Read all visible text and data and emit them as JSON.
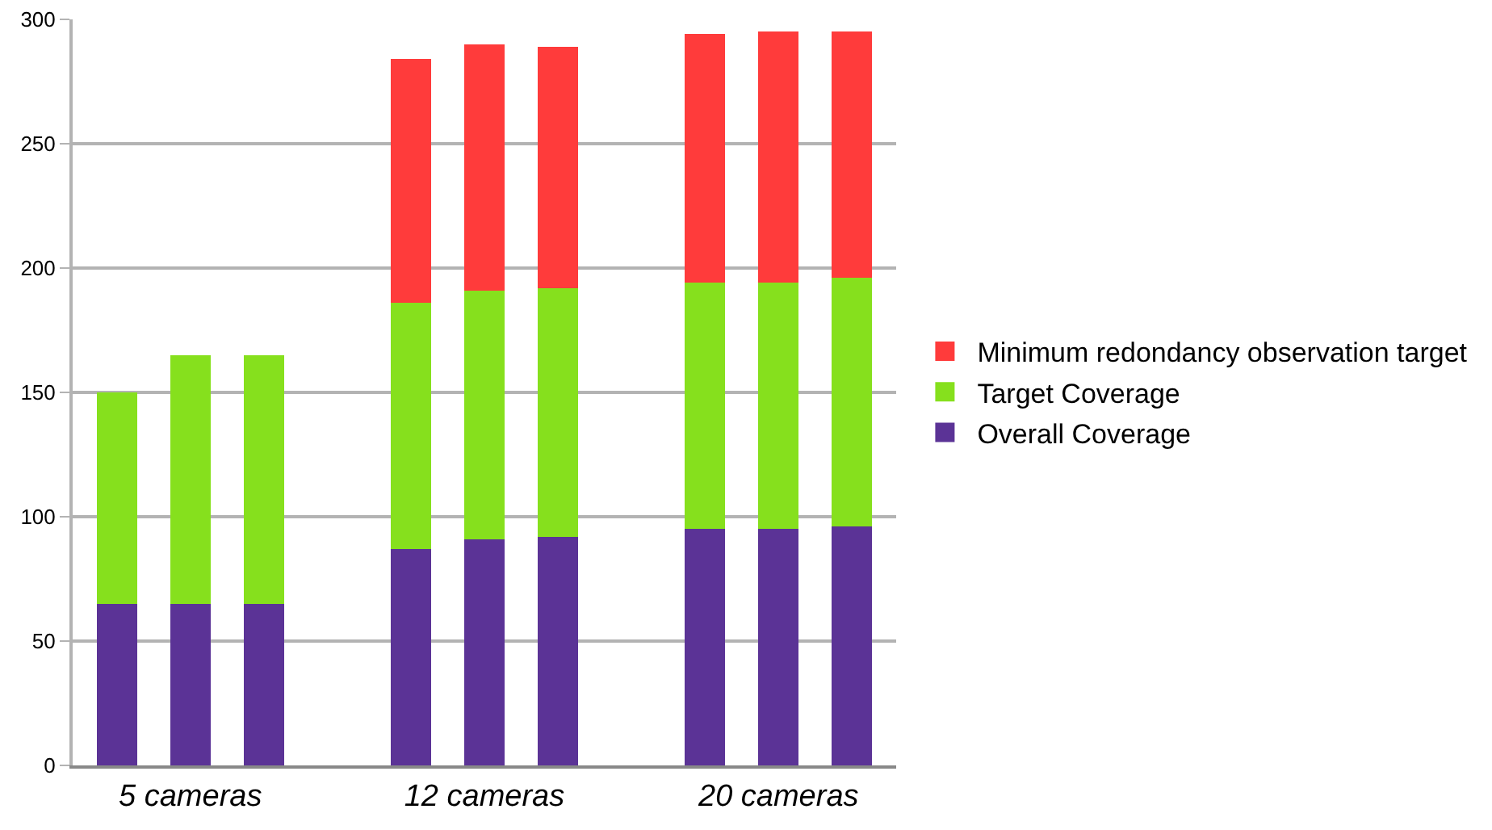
{
  "chart_data": {
    "type": "bar",
    "stacked": true,
    "categories": [
      null,
      "5 cameras",
      null,
      null,
      null,
      "12 cameras",
      null,
      null,
      null,
      "20 cameras",
      null
    ],
    "series": [
      {
        "name": "Overall Coverage",
        "color": "#5b3396",
        "values": [
          65,
          65,
          65,
          null,
          87,
          91,
          92,
          null,
          95,
          95,
          96
        ]
      },
      {
        "name": "Target Coverage",
        "color": "#86e01d",
        "values": [
          85,
          100,
          100,
          null,
          99,
          100,
          100,
          null,
          99,
          99,
          100
        ]
      },
      {
        "name": "Minimum redondancy observation target",
        "color": "#ff3b3b",
        "values": [
          null,
          null,
          null,
          null,
          98,
          99,
          97,
          null,
          100,
          101,
          99
        ]
      }
    ],
    "ylim": [
      0,
      300
    ],
    "yticks": [
      0,
      50,
      100,
      150,
      200,
      250,
      300
    ],
    "grid": "y",
    "legend": "right"
  }
}
